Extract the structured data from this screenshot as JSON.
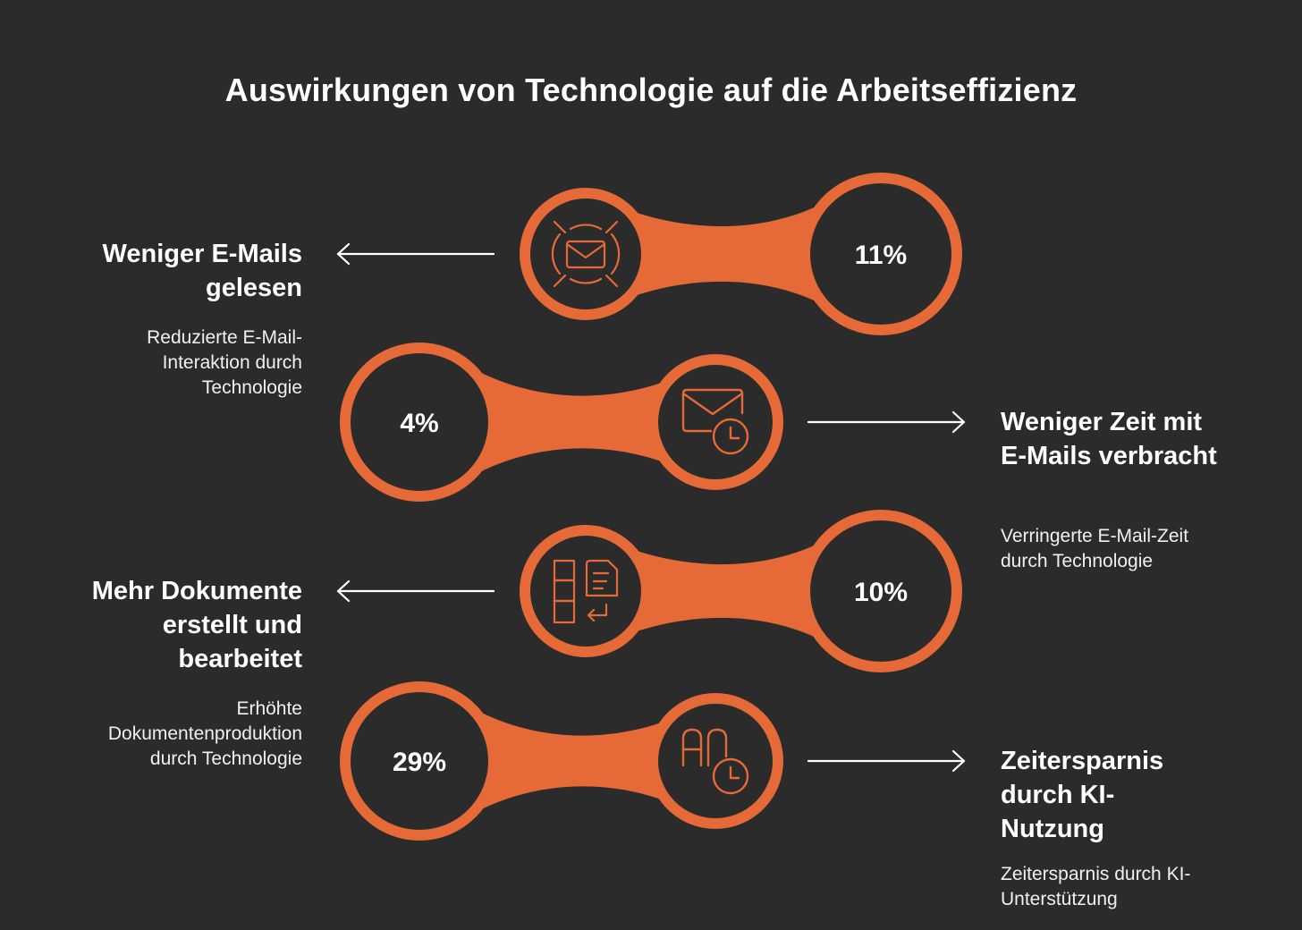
{
  "title": "Auswirkungen von Technologie auf die Arbeitseffizienz",
  "accent_color": "#e66a38",
  "background_color": "#2b2b2b",
  "items": [
    {
      "icon": "email-focus-icon",
      "value": "11%",
      "heading": "Weniger E-Mails gelesen",
      "description": "Reduzierte E-Mail-Interaktion durch Technologie",
      "side": "left"
    },
    {
      "icon": "email-clock-icon",
      "value": "4%",
      "heading": "Weniger Zeit mit E-Mails verbracht",
      "description": "Verringerte E-Mail-Zeit durch Technologie",
      "side": "right"
    },
    {
      "icon": "document-layout-icon",
      "value": "10%",
      "heading": "Mehr Dokumente erstellt und bearbeitet",
      "description": "Erhöhte Dokumentenproduktion durch Technologie",
      "side": "left"
    },
    {
      "icon": "ai-clock-icon",
      "value": "29%",
      "heading": "Zeitersparnis durch KI-Nutzung",
      "description": "Zeitersparnis durch KI-Unterstützung",
      "side": "right"
    }
  ]
}
